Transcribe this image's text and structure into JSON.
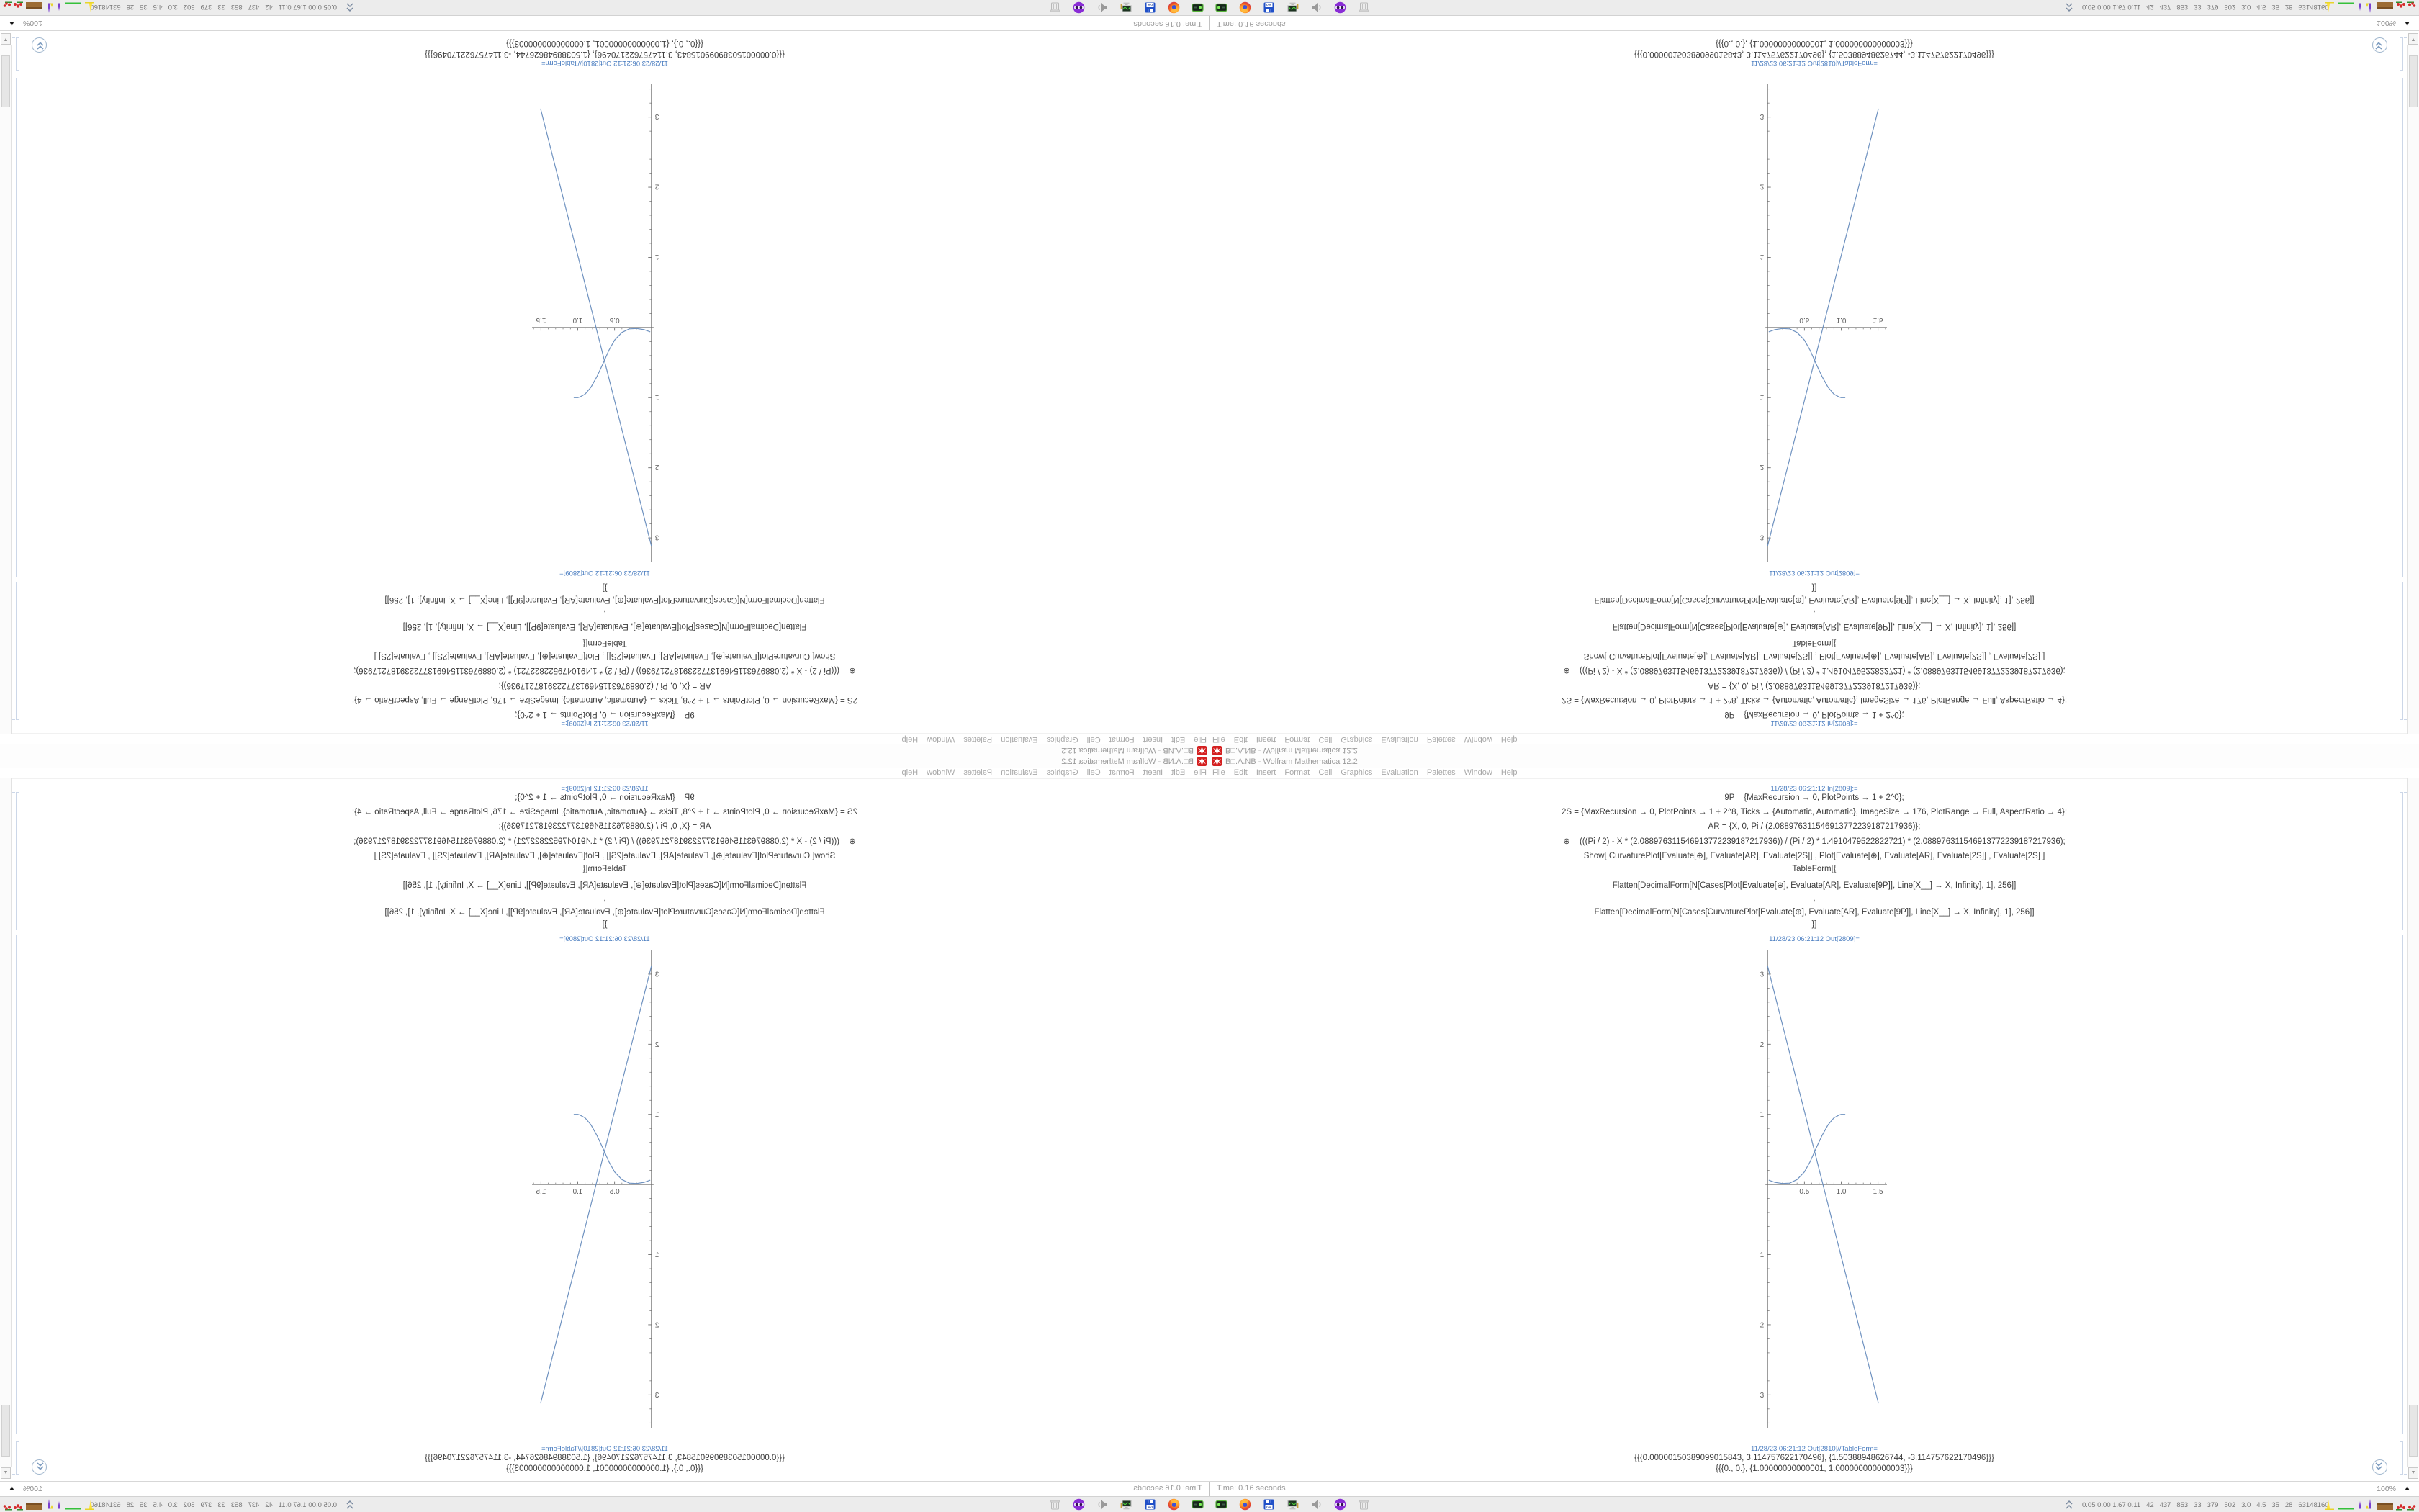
{
  "window": {
    "title": "B□.A.NB - Wolfram Mathematica 12.2",
    "app_icon": "mathematica-spikey-red",
    "menu": {
      "items": [
        "File",
        "Edit",
        "Insert",
        "Format",
        "Cell",
        "Graphics",
        "Evaluation",
        "Palettes",
        "Window",
        "Help"
      ]
    }
  },
  "cells": {
    "in_label": "11/28/23 06:21:12 In[2809]:=",
    "code_lines": [
      "9P = {MaxRecursion → 0, PlotPoints → 1 + 2^0};",
      "2S = {MaxRecursion → 0, PlotPoints → 1 + 2^8, Ticks → {Automatic, Automatic}, ImageSize → 176, PlotRange → Full, AspectRatio → 4};",
      "AR = {X, 0, Pi / (2.088976311546913772239187217936)};",
      "⊕ = (((Pi / 2) - X * (2.088976311546913772239187217936)) / (Pi / 2) * 1.4910479522822721) * (2.088976311546913772239187217936);",
      "Show[  CurvaturePlot[Evaluate[⊕], Evaluate[AR], Evaluate[2S]]  ,  Plot[Evaluate[⊕], Evaluate[AR], Evaluate[2S]]  ,  Evaluate[2S]  ]",
      "TableForm[{",
      "Flatten[DecimalForm[N[Cases[Plot[Evaluate[⊕], Evaluate[AR], Evaluate[9P]], Line[X__] → X, Infinity], 1], 256]]",
      ",",
      "Flatten[DecimalForm[N[Cases[CurvaturePlot[Evaluate[⊕], Evaluate[AR], Evaluate[9P]], Line[X__] → X, Infinity], 1], 256]]",
      "}]"
    ],
    "out_plot_label": "11/28/23 06:21:12 Out[2809]=",
    "out_table_label": "11/28/23 06:21:12 Out[2810]//TableForm=",
    "table_rows": [
      "{{{0.00000150389099015843, 3.114757622170496}, {1.50388948626744, -3.114757622170496}}}",
      "{{{0., 0.}, {1.00000000000001, 1.000000000000003}}}"
    ]
  },
  "status_bar": {
    "time_text": "Time: 0.16 seconds",
    "zoom_level": "100%",
    "zoom_marker": "▲",
    "scroll_down_glyph": "▼"
  },
  "taskbar": {
    "icons": [
      "drive",
      "firefox",
      "floppy-64",
      "monitor",
      "speaker",
      "mask",
      "trash"
    ],
    "floppy_label": "64",
    "monitor_text": "0.05 0.00 1.67 0.11   42   437   853   33   379   502   3.0   4.5   35   28   63148160"
  },
  "colors": {
    "plot_line": "#6f92c0",
    "cell_label_blue": "#4a7dc0",
    "taskbar_bg": "#ececec",
    "app_icon_red": "#d42020"
  },
  "mirroring": "single 1680x1050 desktop mirrored horizontally and vertically into four quadrants",
  "chart_data": {
    "type": "line",
    "title": "",
    "xlabel": "",
    "ylabel": "",
    "xlim": [
      -0.1,
      1.66
    ],
    "ylim": [
      -3.52,
      3.42
    ],
    "xticks": [
      0.5,
      1.0,
      1.5
    ],
    "yticks": [
      -3,
      -2,
      -1,
      1,
      2,
      3
    ],
    "grid": false,
    "legend": "none",
    "image_size": 176,
    "aspect_ratio": 4,
    "series": [
      {
        "name": "Plot (straight line)",
        "color": "#6f92c0",
        "points": [
          [
            1.50389099015843e-06,
            3.114757622170496
          ],
          [
            1.50388948626744,
            -3.114757622170496
          ]
        ]
      },
      {
        "name": "CurvaturePlot (sigmoid curve)",
        "color": "#6f92c0",
        "points": [
          [
            0.02,
            0.06
          ],
          [
            0.1,
            0.03
          ],
          [
            0.2,
            0.015
          ],
          [
            0.3,
            0.02
          ],
          [
            0.4,
            0.07
          ],
          [
            0.5,
            0.18
          ],
          [
            0.58,
            0.33
          ],
          [
            0.66,
            0.52
          ],
          [
            0.74,
            0.7
          ],
          [
            0.82,
            0.85
          ],
          [
            0.9,
            0.95
          ],
          [
            0.97,
            0.99
          ],
          [
            1.0,
            1.0
          ],
          [
            1.05,
            1.0
          ]
        ]
      }
    ]
  }
}
